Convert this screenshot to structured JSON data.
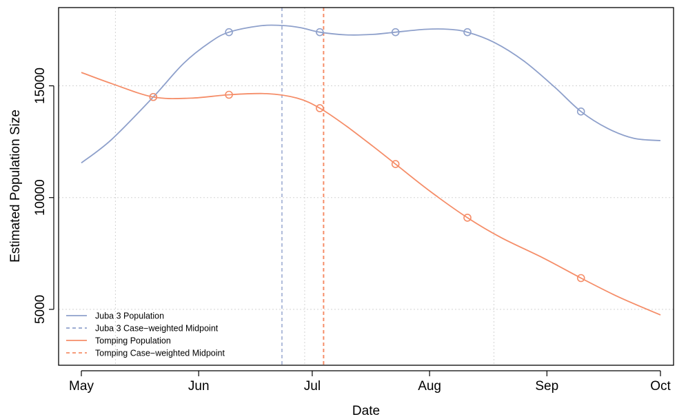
{
  "chart_data": {
    "type": "line",
    "xlabel": "Date",
    "ylabel": "Estimated Population Size",
    "x_axis": {
      "type": "date",
      "range": [
        "2014-05-01",
        "2014-10-01"
      ],
      "ticks": [
        {
          "date": "2014-05-01",
          "label": "May"
        },
        {
          "date": "2014-06-01",
          "label": "Jun"
        },
        {
          "date": "2014-07-01",
          "label": "Jul"
        },
        {
          "date": "2014-08-01",
          "label": "Aug"
        },
        {
          "date": "2014-09-01",
          "label": "Sep"
        },
        {
          "date": "2014-10-01",
          "label": "Oct"
        }
      ],
      "grid_dates": [
        "2014-05-10",
        "2014-06-29",
        "2014-08-18"
      ]
    },
    "y_axis": {
      "ylim": [
        2500,
        18500
      ],
      "ticks": [
        5000,
        10000,
        15000
      ],
      "tick_labels": [
        "5000",
        "10000",
        "15000"
      ]
    },
    "grid": true,
    "series": [
      {
        "name": "Juba 3 Population",
        "color": "#8ea0cb",
        "style": "solid",
        "observed": [
          {
            "x": "2014-05-20",
            "y": 14500
          },
          {
            "x": "2014-06-09",
            "y": 17400
          },
          {
            "x": "2014-07-03",
            "y": 17400
          },
          {
            "x": "2014-07-23",
            "y": 17400
          },
          {
            "x": "2014-08-11",
            "y": 17400
          },
          {
            "x": "2014-09-10",
            "y": 13850
          }
        ],
        "curve": [
          {
            "x": "2014-05-01",
            "y": 11550
          },
          {
            "x": "2014-05-09",
            "y": 12600
          },
          {
            "x": "2014-05-20",
            "y": 14500
          },
          {
            "x": "2014-05-28",
            "y": 16000
          },
          {
            "x": "2014-06-04",
            "y": 16950
          },
          {
            "x": "2014-06-09",
            "y": 17400
          },
          {
            "x": "2014-06-17",
            "y": 17680
          },
          {
            "x": "2014-06-23",
            "y": 17700
          },
          {
            "x": "2014-06-28",
            "y": 17600
          },
          {
            "x": "2014-07-03",
            "y": 17400
          },
          {
            "x": "2014-07-10",
            "y": 17280
          },
          {
            "x": "2014-07-17",
            "y": 17300
          },
          {
            "x": "2014-07-23",
            "y": 17400
          },
          {
            "x": "2014-07-31",
            "y": 17530
          },
          {
            "x": "2014-08-06",
            "y": 17530
          },
          {
            "x": "2014-08-11",
            "y": 17400
          },
          {
            "x": "2014-08-18",
            "y": 16950
          },
          {
            "x": "2014-08-26",
            "y": 16100
          },
          {
            "x": "2014-09-03",
            "y": 14950
          },
          {
            "x": "2014-09-10",
            "y": 13850
          },
          {
            "x": "2014-09-17",
            "y": 13100
          },
          {
            "x": "2014-09-24",
            "y": 12650
          },
          {
            "x": "2014-10-01",
            "y": 12550
          }
        ]
      },
      {
        "name": "Tomping Population",
        "color": "#f58d68",
        "style": "solid",
        "observed": [
          {
            "x": "2014-05-20",
            "y": 14500
          },
          {
            "x": "2014-06-09",
            "y": 14600
          },
          {
            "x": "2014-07-03",
            "y": 14000
          },
          {
            "x": "2014-07-23",
            "y": 11500
          },
          {
            "x": "2014-08-11",
            "y": 9100
          },
          {
            "x": "2014-09-10",
            "y": 6400
          }
        ],
        "curve": [
          {
            "x": "2014-05-01",
            "y": 15600
          },
          {
            "x": "2014-05-09",
            "y": 15100
          },
          {
            "x": "2014-05-20",
            "y": 14500
          },
          {
            "x": "2014-05-30",
            "y": 14450
          },
          {
            "x": "2014-06-09",
            "y": 14600
          },
          {
            "x": "2014-06-19",
            "y": 14650
          },
          {
            "x": "2014-06-27",
            "y": 14450
          },
          {
            "x": "2014-07-03",
            "y": 14000
          },
          {
            "x": "2014-07-10",
            "y": 13200
          },
          {
            "x": "2014-07-17",
            "y": 12300
          },
          {
            "x": "2014-07-23",
            "y": 11500
          },
          {
            "x": "2014-08-01",
            "y": 10300
          },
          {
            "x": "2014-08-11",
            "y": 9100
          },
          {
            "x": "2014-08-20",
            "y": 8200
          },
          {
            "x": "2014-08-31",
            "y": 7300
          },
          {
            "x": "2014-09-10",
            "y": 6400
          },
          {
            "x": "2014-09-20",
            "y": 5550
          },
          {
            "x": "2014-10-01",
            "y": 4750
          }
        ]
      }
    ],
    "midpoints": [
      {
        "name": "Juba 3 Case−weighted Midpoint",
        "x": "2014-06-23",
        "color": "#8ea0cb",
        "style": "dashed"
      },
      {
        "name": "Tomping Case−weighted Midpoint",
        "x": "2014-07-04",
        "color": "#f58d68",
        "style": "dashed"
      }
    ],
    "legend": {
      "position": "bottom-left",
      "entries": [
        {
          "label": "Juba 3 Population",
          "color": "#8ea0cb",
          "style": "solid"
        },
        {
          "label": "Juba 3 Case−weighted Midpoint",
          "color": "#8ea0cb",
          "style": "dashed"
        },
        {
          "label": "Tomping Population",
          "color": "#f58d68",
          "style": "solid"
        },
        {
          "label": "Tomping Case−weighted Midpoint",
          "color": "#f58d68",
          "style": "dashed"
        }
      ]
    }
  }
}
